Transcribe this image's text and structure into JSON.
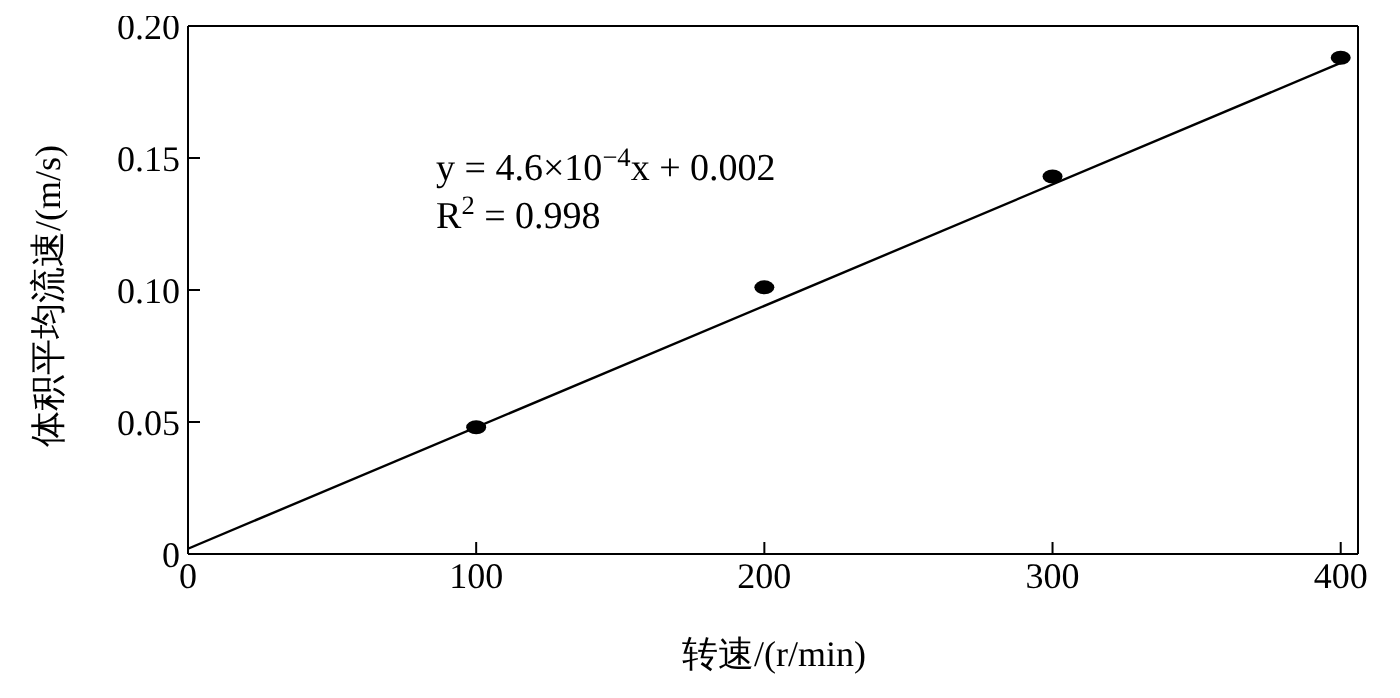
{
  "chart_data": {
    "type": "scatter",
    "xlabel": "转速/(r/min)",
    "ylabel": "体积平均流速/(m/s)",
    "x": [
      100,
      200,
      300,
      400
    ],
    "series": [
      {
        "color": "#000000",
        "values": [
          0.048,
          0.101,
          0.143,
          0.188
        ],
        "marker": "circle"
      },
      {
        "type": "line",
        "color": "#000000",
        "x": [
          0,
          400
        ],
        "values": [
          0.002,
          0.186
        ],
        "marker": "none",
        "line_style": "solid"
      }
    ],
    "xlim": [
      0,
      406
    ],
    "xticks": [
      0,
      100,
      200,
      300,
      400
    ],
    "ylim": [
      0,
      0.2
    ],
    "yticks": [
      0,
      0.05,
      {
        "value": 0.1,
        "label": "0.10"
      },
      0.15,
      {
        "value": 0.2,
        "label": "0.20"
      }
    ],
    "annotations": [
      {
        "text": "y = 4.6×10$^{−4}$x + 0.002"
      },
      {
        "text": "R$^{2}$ = 0.998"
      }
    ]
  }
}
